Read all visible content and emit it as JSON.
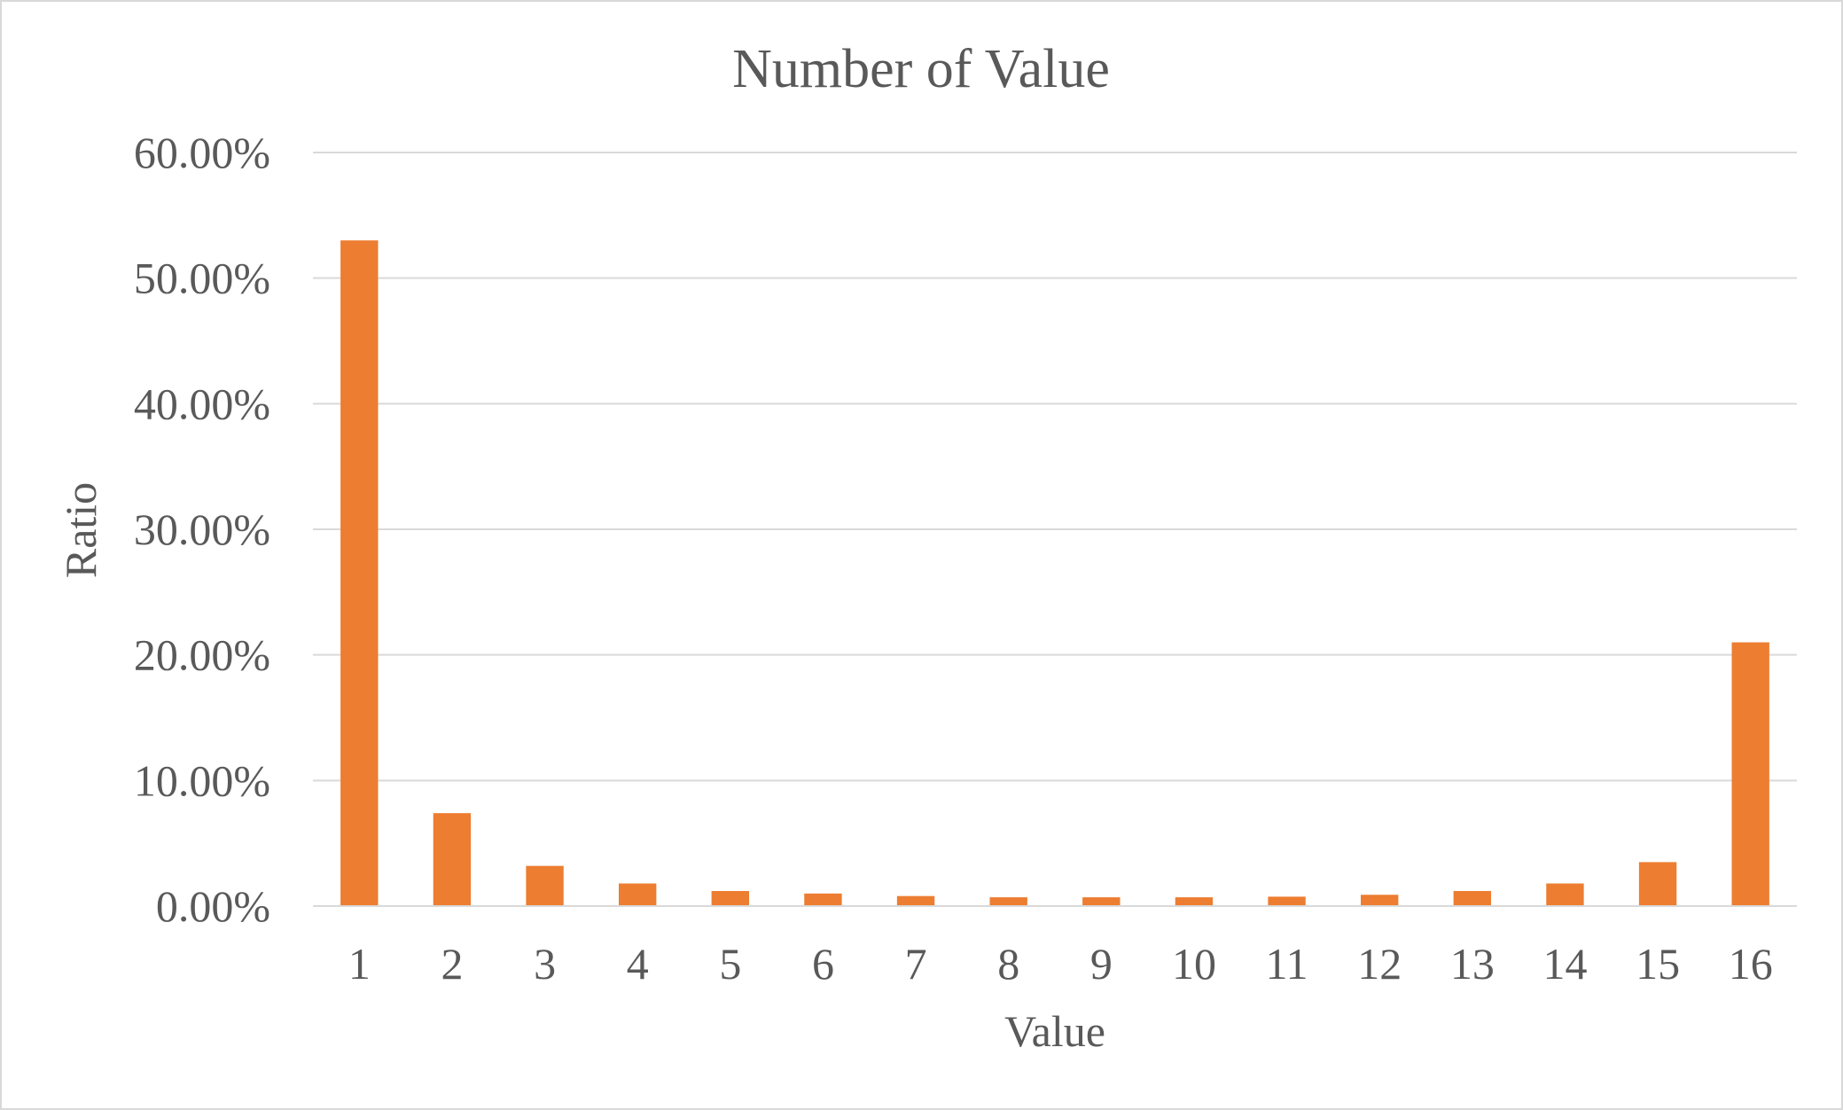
{
  "chart_data": {
    "type": "bar",
    "title": "Number of Value",
    "xlabel": "Value",
    "ylabel": "Ratio",
    "categories": [
      "1",
      "2",
      "3",
      "4",
      "5",
      "6",
      "7",
      "8",
      "9",
      "10",
      "11",
      "12",
      "13",
      "14",
      "15",
      "16"
    ],
    "series": [
      {
        "values": [
          0.53,
          0.074,
          0.032,
          0.018,
          0.012,
          0.01,
          0.008,
          0.007,
          0.007,
          0.007,
          0.0075,
          0.009,
          0.012,
          0.018,
          0.035,
          0.21
        ]
      }
    ],
    "ylim": [
      0,
      0.6
    ],
    "yticks": [
      0,
      0.1,
      0.2,
      0.3,
      0.4,
      0.5,
      0.6
    ],
    "ytick_labels": [
      "0.00%",
      "10.00%",
      "20.00%",
      "30.00%",
      "40.00%",
      "50.00%",
      "60.00%"
    ],
    "bar_color": "#ED7D31",
    "grid": true,
    "legend": "none"
  }
}
